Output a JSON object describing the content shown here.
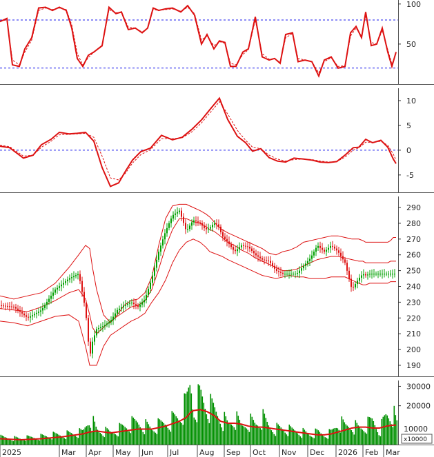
{
  "chart_data": [
    {
      "panel": "oscillator",
      "type": "line",
      "ylim": [
        0,
        105
      ],
      "yticks": [
        50,
        100
      ],
      "reference_levels": [
        20,
        80
      ],
      "colors": {
        "main": "#dd1111",
        "signal": "#dd1111",
        "reference": "#1a1aee"
      },
      "x": [
        0,
        10,
        18,
        28,
        36,
        46,
        56,
        66,
        76,
        86,
        96,
        104,
        112,
        120,
        128,
        136,
        148,
        158,
        168,
        176,
        186,
        196,
        206,
        214,
        222,
        230,
        240,
        250,
        262,
        272,
        282,
        292,
        300,
        310,
        318,
        326,
        334,
        342,
        352,
        360,
        370,
        380,
        390,
        398,
        406,
        414,
        424,
        432,
        442,
        452,
        462,
        470,
        480,
        490,
        500,
        508,
        516,
        524,
        530,
        538,
        546,
        554,
        562,
        568,
        574
      ],
      "series": [
        {
          "name": "main",
          "values": [
            78,
            82,
            24,
            22,
            44,
            58,
            95,
            96,
            92,
            96,
            92,
            70,
            32,
            22,
            36,
            40,
            48,
            96,
            88,
            90,
            68,
            70,
            64,
            70,
            95,
            92,
            94,
            95,
            90,
            98,
            86,
            50,
            62,
            44,
            54,
            52,
            22,
            22,
            40,
            44,
            84,
            34,
            30,
            32,
            26,
            62,
            64,
            28,
            30,
            28,
            10,
            30,
            34,
            20,
            22,
            64,
            72,
            58,
            90,
            48,
            50,
            70,
            40,
            22,
            40
          ]
        },
        {
          "name": "signal",
          "values": [
            79,
            80,
            30,
            24,
            40,
            55,
            92,
            95,
            93,
            95,
            93,
            74,
            38,
            24,
            33,
            40,
            47,
            93,
            89,
            90,
            71,
            70,
            65,
            70,
            93,
            92,
            93,
            94,
            91,
            96,
            88,
            55,
            60,
            48,
            53,
            51,
            26,
            24,
            37,
            43,
            80,
            38,
            31,
            32,
            27,
            58,
            63,
            32,
            30,
            28,
            14,
            28,
            33,
            22,
            23,
            60,
            70,
            60,
            86,
            52,
            50,
            67,
            43,
            25,
            38
          ]
        }
      ]
    },
    {
      "panel": "macd",
      "type": "line",
      "ylim": [
        -8.5,
        12.5
      ],
      "yticks": [
        -5,
        0,
        5,
        10
      ],
      "zero_line": 0,
      "colors": {
        "main": "#dd1111",
        "signal": "#dd1111",
        "zero": "#1a1aee"
      },
      "x": [
        0,
        14,
        34,
        48,
        60,
        74,
        86,
        100,
        112,
        124,
        136,
        148,
        160,
        172,
        182,
        192,
        204,
        218,
        234,
        250,
        264,
        278,
        292,
        306,
        318,
        330,
        344,
        356,
        366,
        378,
        390,
        402,
        414,
        426,
        440,
        452,
        464,
        476,
        488,
        500,
        512,
        520,
        530,
        540,
        552,
        562,
        570,
        574
      ],
      "series": [
        {
          "name": "macd",
          "values": [
            0.8,
            0.5,
            -1.6,
            -1.0,
            1.1,
            2.2,
            3.6,
            3.3,
            3.4,
            3.6,
            1.8,
            -3.5,
            -7.3,
            -6.6,
            -4.2,
            -2.0,
            -0.3,
            0.4,
            3.0,
            2.1,
            2.6,
            4.2,
            6.1,
            8.5,
            10.5,
            6.2,
            2.8,
            1.5,
            -0.2,
            0.3,
            -1.5,
            -2.2,
            -2.4,
            -1.6,
            -1.8,
            -2.0,
            -2.4,
            -2.5,
            -2.3,
            -1.0,
            0.5,
            0.6,
            2.2,
            1.5,
            2.0,
            0.6,
            -1.8,
            -2.7
          ]
        },
        {
          "name": "signal",
          "values": [
            1.0,
            0.7,
            -1.2,
            -1.0,
            0.6,
            1.8,
            3.1,
            3.2,
            3.3,
            3.4,
            2.6,
            -1.2,
            -5.6,
            -6.0,
            -4.6,
            -2.6,
            -0.9,
            0.1,
            2.3,
            2.3,
            2.5,
            3.7,
            5.5,
            7.8,
            9.8,
            7.3,
            4.0,
            2.0,
            0.6,
            0.3,
            -1.0,
            -1.8,
            -2.2,
            -1.9,
            -1.8,
            -1.9,
            -2.2,
            -2.4,
            -2.3,
            -1.4,
            0.0,
            0.5,
            1.6,
            1.6,
            1.8,
            1.0,
            -0.8,
            -2.0
          ]
        }
      ]
    },
    {
      "panel": "price",
      "type": "candlestick",
      "ylim": [
        183,
        297
      ],
      "yticks": [
        190,
        200,
        210,
        220,
        230,
        240,
        250,
        260,
        270,
        280,
        290
      ],
      "colors": {
        "up": "#00a000",
        "down": "#dd1111",
        "bands": "#dd1111"
      },
      "x": [
        0,
        20,
        40,
        60,
        80,
        100,
        114,
        124,
        130,
        134,
        140,
        150,
        160,
        170,
        180,
        190,
        200,
        210,
        220,
        230,
        240,
        250,
        260,
        270,
        280,
        290,
        298,
        304,
        310,
        316,
        322,
        330,
        340,
        350,
        360,
        370,
        380,
        390,
        400,
        410,
        420,
        430,
        440,
        450,
        460,
        470,
        480,
        490,
        500,
        510,
        520,
        526,
        530,
        536,
        544,
        552,
        558,
        562,
        566,
        570,
        574
      ],
      "close": [
        228,
        227,
        220,
        225,
        238,
        245,
        248,
        225,
        195,
        205,
        213,
        215,
        218,
        225,
        228,
        230,
        227,
        232,
        245,
        262,
        275,
        285,
        288,
        275,
        282,
        280,
        276,
        277,
        280,
        279,
        272,
        268,
        262,
        266,
        265,
        260,
        257,
        256,
        250,
        248,
        248,
        248,
        253,
        258,
        266,
        262,
        266,
        262,
        255,
        238,
        245,
        248,
        247,
        248,
        248,
        248,
        248,
        248,
        248,
        248,
        248
      ],
      "bands": {
        "upper": [
          234,
          232,
          234,
          236,
          242,
          252,
          260,
          266,
          264,
          252,
          238,
          222,
          217,
          222,
          228,
          231,
          232,
          236,
          246,
          266,
          283,
          291,
          292,
          292,
          290,
          288,
          286,
          284,
          281,
          278,
          276,
          274,
          272,
          270,
          268,
          266,
          264,
          261,
          260,
          262,
          263,
          265,
          268,
          269,
          270,
          271,
          272,
          272,
          271,
          270,
          270,
          269,
          268,
          268,
          268,
          268,
          268,
          268,
          269,
          271,
          271
        ],
        "middle": [
          226,
          225,
          224,
          227,
          231,
          236,
          238,
          232,
          222,
          214,
          210,
          214,
          218,
          221,
          224,
          227,
          228,
          231,
          238,
          251,
          265,
          276,
          283,
          283,
          281,
          280,
          278,
          276,
          275,
          273,
          271,
          268,
          266,
          263,
          261,
          258,
          256,
          254,
          252,
          250,
          250,
          251,
          253,
          255,
          257,
          258,
          259,
          259,
          258,
          257,
          256,
          256,
          255,
          255,
          255,
          255,
          255,
          255,
          256,
          256,
          256
        ],
        "lower": [
          218,
          217,
          215,
          218,
          221,
          222,
          218,
          202,
          190,
          190,
          190,
          202,
          209,
          212,
          215,
          218,
          220,
          223,
          230,
          236,
          244,
          255,
          263,
          268,
          270,
          268,
          265,
          262,
          261,
          260,
          259,
          257,
          255,
          253,
          251,
          249,
          247,
          246,
          245,
          246,
          247,
          246,
          246,
          245,
          245,
          245,
          246,
          246,
          246,
          244,
          242,
          241,
          241,
          242,
          242,
          242,
          242,
          242,
          243,
          243,
          243
        ]
      }
    },
    {
      "panel": "volume",
      "type": "bar",
      "ylim": [
        0,
        33000
      ],
      "yticks": [
        10000,
        20000,
        30000
      ],
      "unit_label": "x10000",
      "colors": {
        "bars": "#009000",
        "average": "#dd1111"
      },
      "x": [
        0,
        30,
        60,
        90,
        120,
        130,
        140,
        160,
        180,
        200,
        220,
        240,
        260,
        270,
        276,
        280,
        290,
        300,
        310,
        320,
        330,
        340,
        350,
        360,
        370,
        380,
        390,
        400,
        410,
        420,
        430,
        440,
        450,
        460,
        470,
        480,
        490,
        500,
        510,
        520,
        530,
        540,
        550,
        560,
        570,
        574
      ],
      "values": [
        3500,
        3000,
        4000,
        5000,
        6000,
        14000,
        7000,
        6000,
        9000,
        11000,
        8000,
        11000,
        14000,
        20000,
        31000,
        18000,
        24000,
        19000,
        17000,
        14000,
        10000,
        13000,
        9000,
        12000,
        10000,
        13000,
        9000,
        8000,
        8000,
        7000,
        7000,
        6000,
        5000,
        6000,
        5000,
        6000,
        11000,
        9000,
        10000,
        8000,
        9000,
        12000,
        7000,
        15000,
        15000,
        10000
      ],
      "average": [
        3000,
        2500,
        3000,
        4000,
        5500,
        6500,
        7000,
        6000,
        7000,
        8000,
        8000,
        9500,
        12000,
        14000,
        16500,
        17500,
        18000,
        17000,
        15000,
        12000,
        11000,
        11000,
        10500,
        9500,
        9000,
        9000,
        8500,
        8000,
        7500,
        7000,
        6500,
        6000,
        5500,
        5000,
        5000,
        5500,
        6500,
        7500,
        8500,
        9000,
        9000,
        8500,
        8500,
        9500,
        10000,
        10000
      ]
    }
  ],
  "xaxis": {
    "labels": [
      {
        "label": "2025",
        "x": 0
      },
      {
        "label": "Mar",
        "x": 86
      },
      {
        "label": "Apr",
        "x": 125
      },
      {
        "label": "May",
        "x": 164
      },
      {
        "label": "Jun",
        "x": 202
      },
      {
        "label": "Jul",
        "x": 243
      },
      {
        "label": "Aug",
        "x": 286
      },
      {
        "label": "Sep",
        "x": 325
      },
      {
        "label": "Oct",
        "x": 363
      },
      {
        "label": "Nov",
        "x": 405
      },
      {
        "label": "Dec",
        "x": 446
      },
      {
        "label": "2026",
        "x": 487
      },
      {
        "label": "Feb",
        "x": 526
      },
      {
        "label": "Mar",
        "x": 556
      }
    ]
  }
}
